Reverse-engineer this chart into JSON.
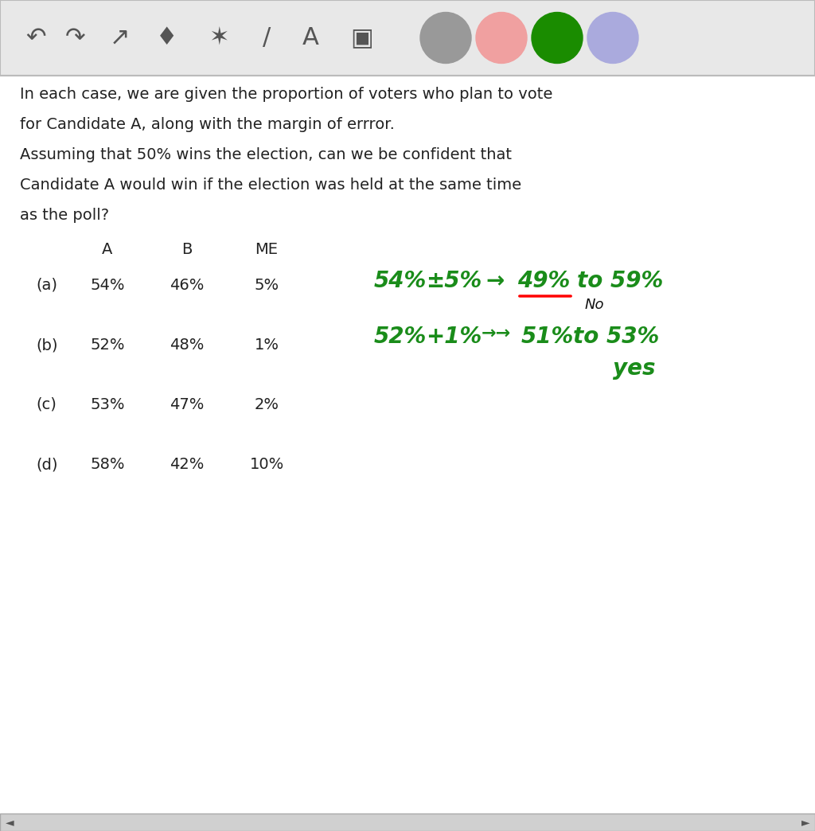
{
  "toolbar_bg": "#e8e8e8",
  "bg_color": "#ffffff",
  "intro_text": [
    "In each case, we are given the proportion of voters who plan to vote",
    "for Candidate A, along with the margin of errror.",
    "Assuming that 50% wins the election, can we be confident that",
    "Candidate A would win if the election was held at the same time",
    "as the poll?"
  ],
  "col_headers": [
    "A",
    "B",
    "ME"
  ],
  "rows": [
    {
      "label": "(a)",
      "A": "54%",
      "B": "46%",
      "ME": "5%"
    },
    {
      "label": "(b)",
      "A": "52%",
      "B": "48%",
      "ME": "1%"
    },
    {
      "label": "(c)",
      "A": "53%",
      "B": "47%",
      "ME": "2%"
    },
    {
      "label": "(d)",
      "A": "58%",
      "B": "42%",
      "ME": "10%"
    }
  ],
  "annotation_a_line1": "54% ±5% → 49% to 59%",
  "annotation_a_no": "No",
  "annotation_b_line1": "52% +1% →  51% to 53%",
  "annotation_b_yes": "yes",
  "green_color": "#1a8c1a",
  "red_underline_color": "#cc0000",
  "text_color": "#222222"
}
